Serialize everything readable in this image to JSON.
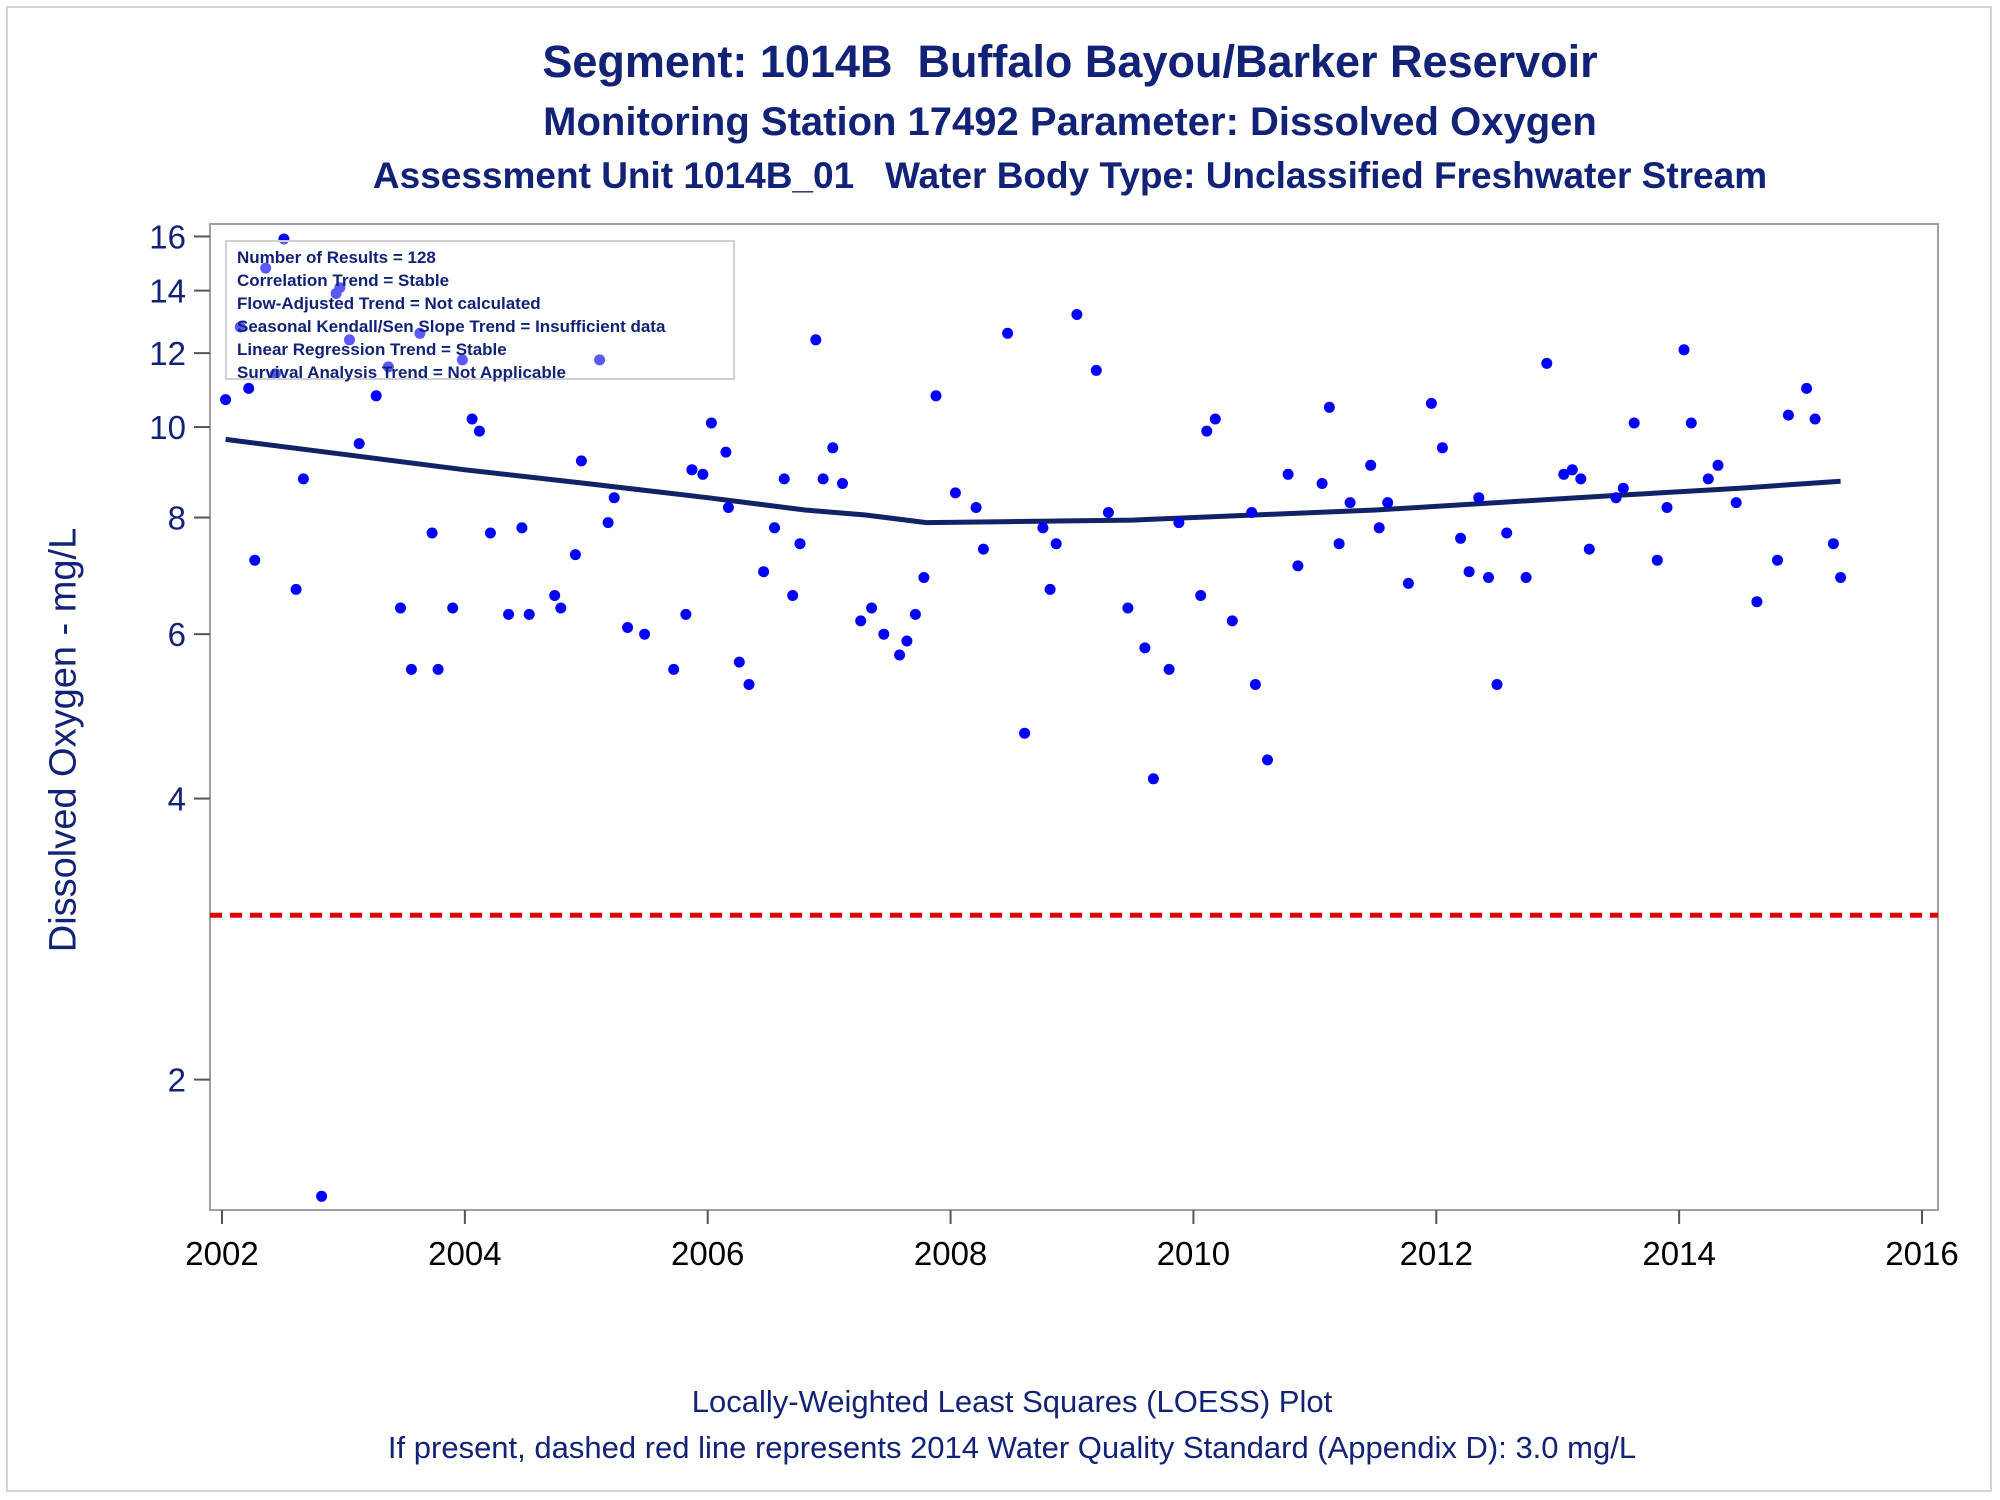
{
  "chart_data": {
    "type": "scatter",
    "title": "Segment: 1014B  Buffalo Bayou/Barker Reservoir",
    "subtitle": "Monitoring Station 17492 Parameter: Dissolved Oxygen",
    "subtitle2": "Assessment Unit 1014B_01   Water Body Type: Unclassified Freshwater Stream",
    "xlabel": "",
    "ylabel": "Dissolved Oxygen - mg/L",
    "xlim": [
      2002,
      2016
    ],
    "ylim": [
      1.45,
      16.5
    ],
    "yscale": "log",
    "xticks": [
      2002,
      2004,
      2006,
      2008,
      2010,
      2012,
      2014,
      2016
    ],
    "yticks": [
      2,
      4,
      6,
      8,
      10,
      12,
      14,
      16
    ],
    "grid": false,
    "stats": [
      "Number of Results = 128",
      "Correlation Trend = Stable",
      "Flow-Adjusted Trend = Not calculated",
      "Seasonal Kendall/Sen Slope Trend = Insufficient data",
      "Linear Regression Trend = Stable",
      "Survival Analysis Trend = Not Applicable"
    ],
    "footnotes": [
      "Locally-Weighted Least Squares (LOESS) Plot",
      "If present, dashed red line represents 2014 Water Quality Standard (Appendix D): 3.0 mg/L"
    ],
    "standard_value": 3.0,
    "colors": {
      "points": "#0000ff",
      "loess": "#112266",
      "standard": "#dd0000",
      "text": "#112277"
    },
    "points": [
      {
        "x": 2002.03,
        "y": 10.7
      },
      {
        "x": 2002.15,
        "y": 12.8
      },
      {
        "x": 2002.22,
        "y": 11.0
      },
      {
        "x": 2002.27,
        "y": 7.2
      },
      {
        "x": 2002.36,
        "y": 14.8
      },
      {
        "x": 2002.44,
        "y": 11.4
      },
      {
        "x": 2002.51,
        "y": 15.9
      },
      {
        "x": 2002.61,
        "y": 6.7
      },
      {
        "x": 2002.67,
        "y": 8.8
      },
      {
        "x": 2002.82,
        "y": 1.5
      },
      {
        "x": 2002.94,
        "y": 13.9
      },
      {
        "x": 2002.97,
        "y": 14.1
      },
      {
        "x": 2003.05,
        "y": 12.4
      },
      {
        "x": 2003.13,
        "y": 9.6
      },
      {
        "x": 2003.27,
        "y": 10.8
      },
      {
        "x": 2003.37,
        "y": 11.6
      },
      {
        "x": 2003.47,
        "y": 6.4
      },
      {
        "x": 2003.56,
        "y": 5.5
      },
      {
        "x": 2003.63,
        "y": 12.6
      },
      {
        "x": 2003.73,
        "y": 7.7
      },
      {
        "x": 2003.78,
        "y": 5.5
      },
      {
        "x": 2003.9,
        "y": 6.4
      },
      {
        "x": 2003.98,
        "y": 11.8
      },
      {
        "x": 2004.06,
        "y": 10.2
      },
      {
        "x": 2004.12,
        "y": 9.9
      },
      {
        "x": 2004.21,
        "y": 7.7
      },
      {
        "x": 2004.36,
        "y": 6.3
      },
      {
        "x": 2004.47,
        "y": 7.8
      },
      {
        "x": 2004.53,
        "y": 6.3
      },
      {
        "x": 2004.74,
        "y": 6.6
      },
      {
        "x": 2004.79,
        "y": 6.4
      },
      {
        "x": 2004.91,
        "y": 7.3
      },
      {
        "x": 2004.96,
        "y": 9.2
      },
      {
        "x": 2005.11,
        "y": 11.8
      },
      {
        "x": 2005.18,
        "y": 7.9
      },
      {
        "x": 2005.23,
        "y": 8.4
      },
      {
        "x": 2005.34,
        "y": 6.1
      },
      {
        "x": 2005.48,
        "y": 6.0
      },
      {
        "x": 2005.72,
        "y": 5.5
      },
      {
        "x": 2005.82,
        "y": 6.3
      },
      {
        "x": 2005.87,
        "y": 9.0
      },
      {
        "x": 2005.96,
        "y": 8.9
      },
      {
        "x": 2006.03,
        "y": 10.1
      },
      {
        "x": 2006.15,
        "y": 9.4
      },
      {
        "x": 2006.17,
        "y": 8.2
      },
      {
        "x": 2006.26,
        "y": 5.6
      },
      {
        "x": 2006.34,
        "y": 5.3
      },
      {
        "x": 2006.46,
        "y": 7.0
      },
      {
        "x": 2006.55,
        "y": 7.8
      },
      {
        "x": 2006.63,
        "y": 8.8
      },
      {
        "x": 2006.7,
        "y": 6.6
      },
      {
        "x": 2006.76,
        "y": 7.5
      },
      {
        "x": 2006.89,
        "y": 12.4
      },
      {
        "x": 2006.95,
        "y": 8.8
      },
      {
        "x": 2007.03,
        "y": 9.5
      },
      {
        "x": 2007.11,
        "y": 8.7
      },
      {
        "x": 2007.26,
        "y": 6.2
      },
      {
        "x": 2007.35,
        "y": 6.4
      },
      {
        "x": 2007.45,
        "y": 6.0
      },
      {
        "x": 2007.58,
        "y": 5.7
      },
      {
        "x": 2007.64,
        "y": 5.9
      },
      {
        "x": 2007.71,
        "y": 6.3
      },
      {
        "x": 2007.78,
        "y": 6.9
      },
      {
        "x": 2007.88,
        "y": 10.8
      },
      {
        "x": 2008.04,
        "y": 8.5
      },
      {
        "x": 2008.21,
        "y": 8.2
      },
      {
        "x": 2008.27,
        "y": 7.4
      },
      {
        "x": 2008.47,
        "y": 12.6
      },
      {
        "x": 2008.61,
        "y": 4.7
      },
      {
        "x": 2008.76,
        "y": 7.8
      },
      {
        "x": 2008.82,
        "y": 6.7
      },
      {
        "x": 2008.87,
        "y": 7.5
      },
      {
        "x": 2009.04,
        "y": 13.2
      },
      {
        "x": 2009.2,
        "y": 11.5
      },
      {
        "x": 2009.3,
        "y": 8.1
      },
      {
        "x": 2009.46,
        "y": 6.4
      },
      {
        "x": 2009.6,
        "y": 5.8
      },
      {
        "x": 2009.67,
        "y": 4.2
      },
      {
        "x": 2009.8,
        "y": 5.5
      },
      {
        "x": 2009.88,
        "y": 7.9
      },
      {
        "x": 2010.06,
        "y": 6.6
      },
      {
        "x": 2010.11,
        "y": 9.9
      },
      {
        "x": 2010.18,
        "y": 10.2
      },
      {
        "x": 2010.32,
        "y": 6.2
      },
      {
        "x": 2010.48,
        "y": 8.1
      },
      {
        "x": 2010.51,
        "y": 5.3
      },
      {
        "x": 2010.61,
        "y": 4.4
      },
      {
        "x": 2010.78,
        "y": 8.9
      },
      {
        "x": 2010.86,
        "y": 7.1
      },
      {
        "x": 2011.06,
        "y": 8.7
      },
      {
        "x": 2011.12,
        "y": 10.5
      },
      {
        "x": 2011.2,
        "y": 7.5
      },
      {
        "x": 2011.29,
        "y": 8.3
      },
      {
        "x": 2011.46,
        "y": 9.1
      },
      {
        "x": 2011.53,
        "y": 7.8
      },
      {
        "x": 2011.6,
        "y": 8.3
      },
      {
        "x": 2011.77,
        "y": 6.8
      },
      {
        "x": 2011.96,
        "y": 10.6
      },
      {
        "x": 2012.05,
        "y": 9.5
      },
      {
        "x": 2012.2,
        "y": 7.6
      },
      {
        "x": 2012.27,
        "y": 7.0
      },
      {
        "x": 2012.35,
        "y": 8.4
      },
      {
        "x": 2012.43,
        "y": 6.9
      },
      {
        "x": 2012.5,
        "y": 5.3
      },
      {
        "x": 2012.58,
        "y": 7.7
      },
      {
        "x": 2012.74,
        "y": 6.9
      },
      {
        "x": 2012.91,
        "y": 11.7
      },
      {
        "x": 2013.05,
        "y": 8.9
      },
      {
        "x": 2013.12,
        "y": 9.0
      },
      {
        "x": 2013.19,
        "y": 8.8
      },
      {
        "x": 2013.26,
        "y": 7.4
      },
      {
        "x": 2013.48,
        "y": 8.4
      },
      {
        "x": 2013.54,
        "y": 8.6
      },
      {
        "x": 2013.63,
        "y": 10.1
      },
      {
        "x": 2013.82,
        "y": 7.2
      },
      {
        "x": 2013.9,
        "y": 8.2
      },
      {
        "x": 2014.04,
        "y": 12.1
      },
      {
        "x": 2014.1,
        "y": 10.1
      },
      {
        "x": 2014.24,
        "y": 8.8
      },
      {
        "x": 2014.32,
        "y": 9.1
      },
      {
        "x": 2014.47,
        "y": 8.3
      },
      {
        "x": 2014.64,
        "y": 6.5
      },
      {
        "x": 2014.81,
        "y": 7.2
      },
      {
        "x": 2014.9,
        "y": 10.3
      },
      {
        "x": 2015.05,
        "y": 11.0
      },
      {
        "x": 2015.12,
        "y": 10.2
      },
      {
        "x": 2015.27,
        "y": 7.5
      },
      {
        "x": 2015.33,
        "y": 6.9
      }
    ],
    "loess": {
      "name": "",
      "x": [
        2002.03,
        2003.0,
        2004.0,
        2005.0,
        2006.0,
        2006.8,
        2007.3,
        2007.8,
        2008.5,
        2009.5,
        2010.5,
        2011.5,
        2012.5,
        2013.5,
        2014.5,
        2015.33
      ],
      "y": [
        9.7,
        9.35,
        9.0,
        8.7,
        8.4,
        8.15,
        8.05,
        7.9,
        7.92,
        7.95,
        8.05,
        8.15,
        8.3,
        8.45,
        8.6,
        8.75
      ]
    }
  }
}
